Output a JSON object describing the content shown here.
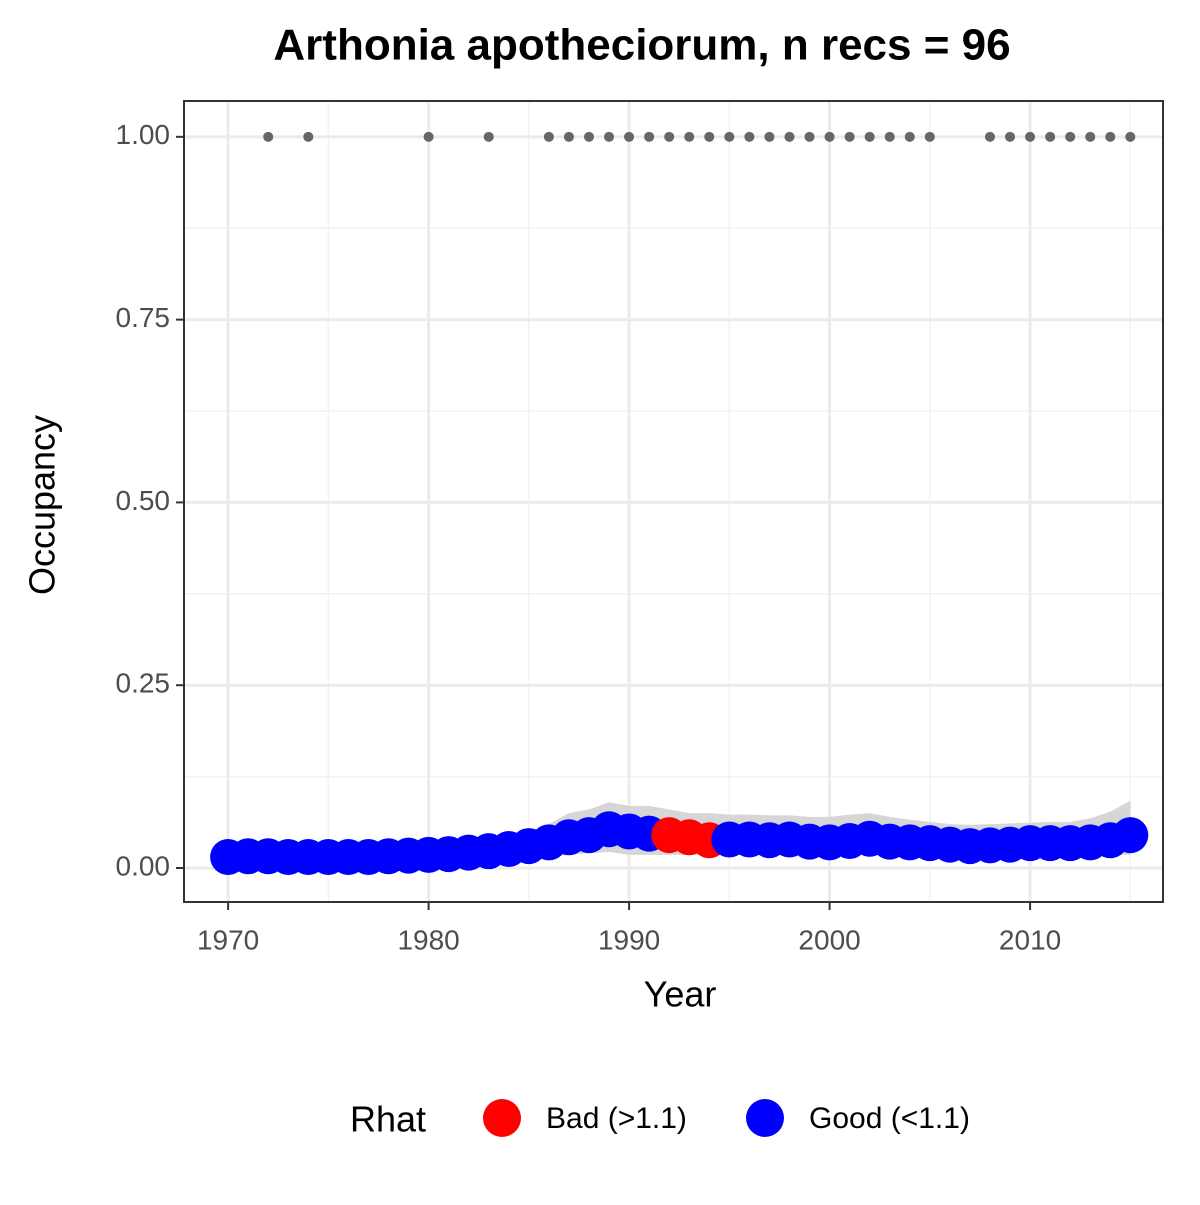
{
  "chart_data": {
    "type": "scatter",
    "title": "Arthonia apotheciorum, n recs = 96",
    "x_label": "Year",
    "y_label": "Occupancy",
    "xlim": [
      1967.8,
      2016.63
    ],
    "ylim": [
      -0.0465,
      1.049
    ],
    "xticks": [
      1970,
      1980,
      1990,
      2000,
      2010
    ],
    "minor_xticks": [
      1975,
      1985,
      1995,
      2005,
      2015
    ],
    "yticks": [
      {
        "value": 0,
        "label": "0.00"
      },
      {
        "value": 0.25,
        "label": "0.25"
      },
      {
        "value": 0.5,
        "label": "0.50"
      },
      {
        "value": 0.75,
        "label": "0.75"
      },
      {
        "value": 1,
        "label": "1.00"
      }
    ],
    "minor_yticks": [
      0.125,
      0.375,
      0.625,
      0.875
    ],
    "grid": true,
    "x": [
      1970,
      1971,
      1972,
      1973,
      1974,
      1975,
      1976,
      1977,
      1978,
      1979,
      1980,
      1981,
      1982,
      1983,
      1984,
      1985,
      1986,
      1987,
      1988,
      1989,
      1990,
      1991,
      1992,
      1993,
      1994,
      1995,
      1996,
      1997,
      1998,
      1999,
      2000,
      2001,
      2002,
      2003,
      2004,
      2005,
      2006,
      2007,
      2008,
      2009,
      2010,
      2011,
      2012,
      2013,
      2014,
      2015
    ],
    "values": [
      0.015,
      0.016,
      0.016,
      0.015,
      0.015,
      0.015,
      0.015,
      0.015,
      0.016,
      0.017,
      0.018,
      0.019,
      0.021,
      0.023,
      0.026,
      0.03,
      0.035,
      0.042,
      0.045,
      0.053,
      0.05,
      0.047,
      0.045,
      0.042,
      0.038,
      0.039,
      0.039,
      0.038,
      0.039,
      0.036,
      0.035,
      0.037,
      0.04,
      0.036,
      0.035,
      0.034,
      0.032,
      0.03,
      0.031,
      0.032,
      0.034,
      0.034,
      0.034,
      0.035,
      0.038,
      0.045
    ],
    "rhat_class": [
      1,
      1,
      1,
      1,
      1,
      1,
      1,
      1,
      1,
      1,
      1,
      1,
      1,
      1,
      1,
      1,
      1,
      1,
      1,
      1,
      1,
      1,
      0,
      0,
      0,
      1,
      1,
      1,
      1,
      1,
      1,
      1,
      1,
      1,
      1,
      1,
      1,
      1,
      1,
      1,
      1,
      1,
      1,
      1,
      1,
      1
    ],
    "interval": {
      "color": "#d6d6d6",
      "upper": [
        0.025,
        0.025,
        0.025,
        0.025,
        0.025,
        0.025,
        0.025,
        0.025,
        0.025,
        0.025,
        0.025,
        0.025,
        0.025,
        0.025,
        0.035,
        0.045,
        0.06,
        0.075,
        0.08,
        0.09,
        0.085,
        0.085,
        0.08,
        0.075,
        0.075,
        0.073,
        0.073,
        0.072,
        0.072,
        0.07,
        0.07,
        0.073,
        0.075,
        0.07,
        0.066,
        0.063,
        0.06,
        0.059,
        0.06,
        0.061,
        0.062,
        0.063,
        0.063,
        0.068,
        0.077,
        0.092
      ],
      "lower": [
        0.007,
        0.007,
        0.007,
        0.007,
        0.007,
        0.007,
        0.007,
        0.007,
        0.007,
        0.007,
        0.007,
        0.007,
        0.007,
        0.007,
        0.01,
        0.012,
        0.015,
        0.018,
        0.02,
        0.022,
        0.018,
        0.018,
        0.018,
        0.018,
        0.018,
        0.018,
        0.018,
        0.018,
        0.018,
        0.018,
        0.018,
        0.018,
        0.018,
        0.018,
        0.018,
        0.018,
        0.018,
        0.018,
        0.018,
        0.018,
        0.018,
        0.018,
        0.018,
        0.018,
        0.018,
        0.018
      ]
    },
    "detections": {
      "color": "#666666",
      "x": [
        1972,
        1974,
        1980,
        1983,
        1986,
        1987,
        1988,
        1989,
        1990,
        1991,
        1992,
        1993,
        1994,
        1995,
        1996,
        1997,
        1998,
        1999,
        2000,
        2001,
        2002,
        2003,
        2004,
        2005,
        2008,
        2009,
        2010,
        2011,
        2012,
        2013,
        2014,
        2015
      ],
      "values": [
        1,
        1,
        1,
        1,
        1,
        1,
        1,
        1,
        1,
        1,
        1,
        1,
        1,
        1,
        1,
        1,
        1,
        1,
        1,
        1,
        1,
        1,
        1,
        1,
        1,
        1,
        1,
        1,
        1,
        1,
        1,
        1
      ]
    },
    "legend": {
      "title": "Rhat",
      "position": "bottom",
      "entries": [
        {
          "label": "Bad (>1.1)",
          "color": "#ff0000"
        },
        {
          "label": "Good (<1.1)",
          "color": "#0000ff"
        }
      ]
    }
  }
}
